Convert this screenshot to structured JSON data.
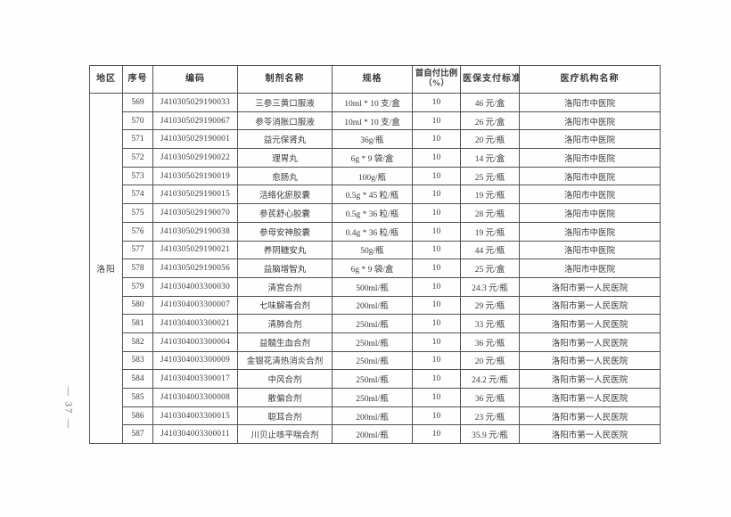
{
  "page": {
    "page_number": "— 37 —"
  },
  "table": {
    "region_label": "洛阳",
    "headers": {
      "region": "地区",
      "seq": "序号",
      "code": "编码",
      "name": "制剂名称",
      "spec": "规格",
      "ratio_line1": "首自付比例",
      "ratio_line2": "（%）",
      "standard": "医保支付标准",
      "institution": "医疗机构名称"
    },
    "rows": [
      {
        "seq": "569",
        "code": "J410305029190033",
        "name": "三参三黄口服液",
        "spec": "10ml * 10 支/盒",
        "ratio": "10",
        "standard": "46 元/盒",
        "institution": "洛阳市中医院"
      },
      {
        "seq": "570",
        "code": "J410305029190067",
        "name": "参苓消胀口服液",
        "spec": "10ml * 10 支/盒",
        "ratio": "10",
        "standard": "26 元/盒",
        "institution": "洛阳市中医院"
      },
      {
        "seq": "571",
        "code": "J410305029190001",
        "name": "益元保肾丸",
        "spec": "36g/瓶",
        "ratio": "10",
        "standard": "20 元/瓶",
        "institution": "洛阳市中医院"
      },
      {
        "seq": "572",
        "code": "J410305029190022",
        "name": "理胃丸",
        "spec": "6g * 9 袋/盒",
        "ratio": "10",
        "standard": "14 元/盒",
        "institution": "洛阳市中医院"
      },
      {
        "seq": "573",
        "code": "J410305029190019",
        "name": "愈肠丸",
        "spec": "100g/瓶",
        "ratio": "10",
        "standard": "25 元/瓶",
        "institution": "洛阳市中医院"
      },
      {
        "seq": "574",
        "code": "J410305029190015",
        "name": "活络化瘀胶囊",
        "spec": "0.5g * 45 粒/瓶",
        "ratio": "10",
        "standard": "19 元/瓶",
        "institution": "洛阳市中医院"
      },
      {
        "seq": "575",
        "code": "J410305029190070",
        "name": "参芪舒心胶囊",
        "spec": "0.5g * 36 粒/瓶",
        "ratio": "10",
        "standard": "28 元/瓶",
        "institution": "洛阳市中医院"
      },
      {
        "seq": "576",
        "code": "J410305029190038",
        "name": "参母安神胶囊",
        "spec": "0.4g * 36 粒/瓶",
        "ratio": "10",
        "standard": "19 元/瓶",
        "institution": "洛阳市中医院"
      },
      {
        "seq": "577",
        "code": "J410305029190021",
        "name": "养阴糖安丸",
        "spec": "50g/瓶",
        "ratio": "10",
        "standard": "44 元/瓶",
        "institution": "洛阳市中医院"
      },
      {
        "seq": "578",
        "code": "J410305029190056",
        "name": "益脑增智丸",
        "spec": "6g * 9 袋/盒",
        "ratio": "10",
        "standard": "25 元/盒",
        "institution": "洛阳市中医院"
      },
      {
        "seq": "579",
        "code": "J410304003300030",
        "name": "清宫合剂",
        "spec": "500ml/瓶",
        "ratio": "10",
        "standard": "24.3 元/瓶",
        "institution": "洛阳市第一人民医院"
      },
      {
        "seq": "580",
        "code": "J410304003300007",
        "name": "七味解毒合剂",
        "spec": "200ml/瓶",
        "ratio": "10",
        "standard": "29 元/瓶",
        "institution": "洛阳市第一人民医院"
      },
      {
        "seq": "581",
        "code": "J410304003300021",
        "name": "清肺合剂",
        "spec": "250ml/瓶",
        "ratio": "10",
        "standard": "33 元/瓶",
        "institution": "洛阳市第一人民医院"
      },
      {
        "seq": "582",
        "code": "J410304003300004",
        "name": "益髓生血合剂",
        "spec": "250ml/瓶",
        "ratio": "10",
        "standard": "36 元/瓶",
        "institution": "洛阳市第一人民医院"
      },
      {
        "seq": "583",
        "code": "J410304003300009",
        "name": "金银花清热消炎合剂",
        "spec": "250ml/瓶",
        "ratio": "10",
        "standard": "20 元/瓶",
        "institution": "洛阳市第一人民医院"
      },
      {
        "seq": "584",
        "code": "J410304003300017",
        "name": "中风合剂",
        "spec": "250ml/瓶",
        "ratio": "10",
        "standard": "24.2 元/瓶",
        "institution": "洛阳市第一人民医院"
      },
      {
        "seq": "585",
        "code": "J410304003300008",
        "name": "散偏合剂",
        "spec": "250ml/瓶",
        "ratio": "10",
        "standard": "36 元/瓶",
        "institution": "洛阳市第一人民医院"
      },
      {
        "seq": "586",
        "code": "J410304003300015",
        "name": "聪耳合剂",
        "spec": "200ml/瓶",
        "ratio": "10",
        "standard": "23 元/瓶",
        "institution": "洛阳市第一人民医院"
      },
      {
        "seq": "587",
        "code": "J410304003300011",
        "name": "川贝止咳平喘合剂",
        "spec": "200ml/瓶",
        "ratio": "10",
        "standard": "35.9 元/瓶",
        "institution": "洛阳市第一人民医院"
      }
    ]
  }
}
